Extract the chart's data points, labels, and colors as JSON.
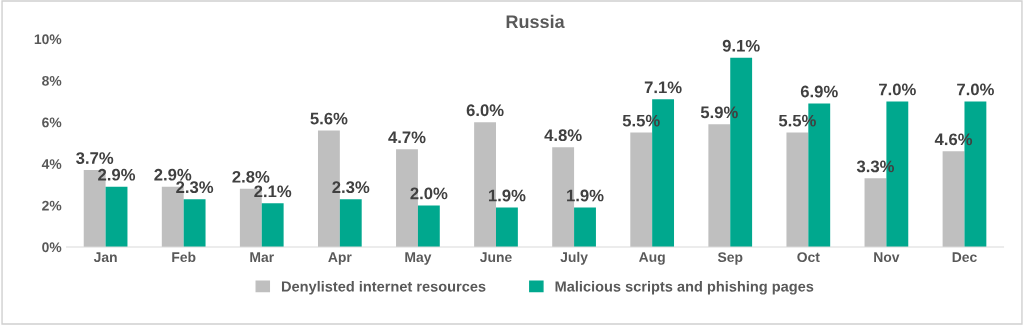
{
  "chart_data": {
    "type": "bar",
    "title": "Russia",
    "categories": [
      "Jan",
      "Feb",
      "Mar",
      "Apr",
      "May",
      "June",
      "July",
      "Aug",
      "Sep",
      "Oct",
      "Nov",
      "Dec"
    ],
    "series": [
      {
        "name": "Denylisted internet resources",
        "color": "#bfbfbf",
        "values": [
          3.7,
          2.9,
          2.8,
          5.6,
          4.7,
          6.0,
          4.8,
          5.5,
          5.9,
          5.5,
          3.3,
          4.6
        ],
        "value_labels": [
          "3.7%",
          "2.9%",
          "2.8%",
          "5.6%",
          "4.7%",
          "6.0%",
          "4.8%",
          "5.5%",
          "5.9%",
          "5.5%",
          "3.3%",
          "4.6%"
        ]
      },
      {
        "name": "Malicious scripts and phishing pages",
        "color": "#00a88e",
        "values": [
          2.9,
          2.3,
          2.1,
          2.3,
          2.0,
          1.9,
          1.9,
          7.1,
          9.1,
          6.9,
          7.0,
          7.0
        ],
        "value_labels": [
          "2.9%",
          "2.3%",
          "2.1%",
          "2.3%",
          "2.0%",
          "1.9%",
          "1.9%",
          "7.1%",
          "9.1%",
          "6.9%",
          "7.0%",
          "7.0%"
        ]
      }
    ],
    "ylim": [
      0,
      10
    ],
    "yticks": [
      {
        "value": 0,
        "label": "0%"
      },
      {
        "value": 2,
        "label": "2%"
      },
      {
        "value": 4,
        "label": "4%"
      },
      {
        "value": 6,
        "label": "6%"
      },
      {
        "value": 8,
        "label": "8%"
      },
      {
        "value": 10,
        "label": "10%"
      }
    ],
    "grid": false,
    "legend": "bottom"
  }
}
